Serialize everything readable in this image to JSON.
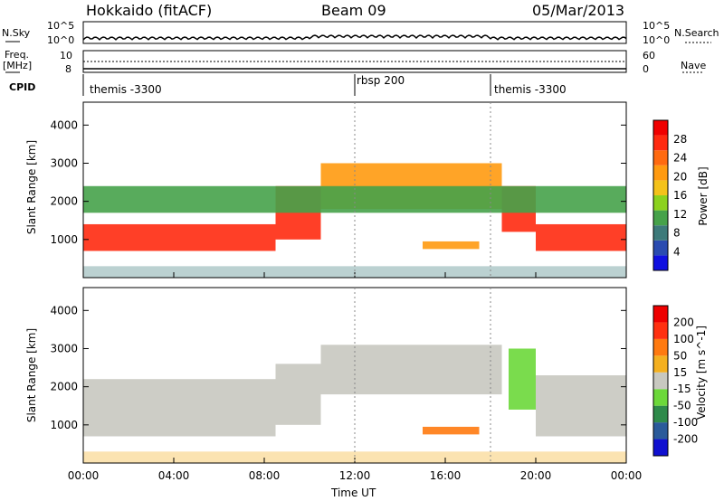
{
  "header": {
    "station": "Hokkaido (fitACF)",
    "beam": "Beam 09",
    "date": "05/Mar/2013"
  },
  "strips": {
    "nsky_label": "N.Sky",
    "nsky_ticks": [
      "10^5",
      "10^0"
    ],
    "nsearch_label": "N.Search",
    "nsearch_ticks": [
      "10^5",
      "10^0"
    ],
    "freq_label": "Freq.",
    "freq_unit": "[MHz]",
    "freq_ticks": [
      "10",
      "8"
    ],
    "nave_label": "Nave",
    "nave_ticks": [
      "60",
      "0"
    ],
    "cpid_label": "CPID",
    "cpid_segments": [
      {
        "label": "themis -3300",
        "start_hour": 0
      },
      {
        "label": "rbsp 200",
        "start_hour": 12
      },
      {
        "label": "themis -3300",
        "start_hour": 18
      }
    ]
  },
  "chart_data": [
    {
      "type": "heatmap",
      "name": "power",
      "ylabel": "Slant Range [km]",
      "xlim": [
        0,
        24
      ],
      "ylim": [
        0,
        4600
      ],
      "yticks": [
        1000,
        2000,
        3000,
        4000
      ],
      "colorbar_label": "Power [dB]",
      "colorbar_ticks": [
        "28",
        "24",
        "20",
        "16",
        "12",
        "8",
        "4"
      ],
      "colors": [
        "#1010e0",
        "#2a4bb0",
        "#3d7a7a",
        "#46a24a",
        "#8cd21e",
        "#f4c21a",
        "#ff9a10",
        "#ff6a10",
        "#ff2a10",
        "#f00000"
      ],
      "bands": [
        {
          "t0": 0,
          "t1": 8.5,
          "r0": 700,
          "r1": 1400,
          "level": "high"
        },
        {
          "t0": 8.5,
          "t1": 10.5,
          "r0": 1000,
          "r1": 2400,
          "level": "high"
        },
        {
          "t0": 10.5,
          "t1": 18.5,
          "r0": 1800,
          "r1": 3000,
          "level": "mid"
        },
        {
          "t0": 18.5,
          "t1": 20,
          "r0": 1200,
          "r1": 2400,
          "level": "high"
        },
        {
          "t0": 20,
          "t1": 24,
          "r0": 700,
          "r1": 1400,
          "level": "high"
        },
        {
          "t0": 0,
          "t1": 24,
          "r0": 1700,
          "r1": 2400,
          "level": "low"
        },
        {
          "t0": 15,
          "t1": 17.5,
          "r0": 750,
          "r1": 950,
          "level": "mid"
        }
      ]
    },
    {
      "type": "heatmap",
      "name": "velocity",
      "ylabel": "Slant Range [km]",
      "xlabel": "Time UT",
      "xlim": [
        0,
        24
      ],
      "ylim": [
        0,
        4600
      ],
      "xtick_labels": [
        "00:00",
        "04:00",
        "08:00",
        "12:00",
        "16:00",
        "20:00",
        "00:00"
      ],
      "yticks": [
        1000,
        2000,
        3000,
        4000
      ],
      "colorbar_label": "Velocity [m s^-1]",
      "colorbar_ticks": [
        "200",
        "100",
        "50",
        "15",
        "-15",
        "-50",
        "-100",
        "-200"
      ],
      "colors": [
        "#1010d0",
        "#2a5a9a",
        "#2e8a4a",
        "#6cd83a",
        "#c8c8c0",
        "#f4b020",
        "#ff7a10",
        "#ff3010",
        "#ee0000"
      ],
      "bands": [
        {
          "t0": 0,
          "t1": 8.5,
          "r0": 700,
          "r1": 2200,
          "level": "ground"
        },
        {
          "t0": 8.5,
          "t1": 10.5,
          "r0": 1000,
          "r1": 2600,
          "level": "ground"
        },
        {
          "t0": 10.5,
          "t1": 18.5,
          "r0": 1800,
          "r1": 3100,
          "level": "ground"
        },
        {
          "t0": 20,
          "t1": 24,
          "r0": 700,
          "r1": 2300,
          "level": "ground"
        },
        {
          "t0": 18.8,
          "t1": 20,
          "r0": 1400,
          "r1": 3000,
          "level": "green"
        },
        {
          "t0": 15,
          "t1": 17.5,
          "r0": 750,
          "r1": 950,
          "level": "orange"
        }
      ]
    }
  ]
}
